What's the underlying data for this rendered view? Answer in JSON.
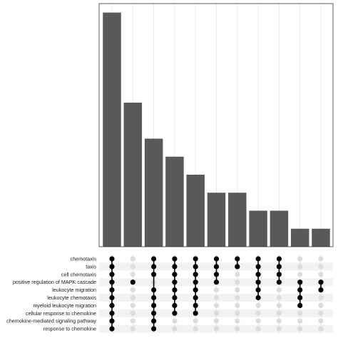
{
  "chart_data": {
    "type": "bar",
    "subtype": "upset",
    "title": "",
    "xlabel": "",
    "ylabel": "",
    "y_tick_labels_shown": false,
    "grid": "vertical",
    "sets": [
      "chemotaxis",
      "taxis",
      "cell chemotaxis",
      "positive regulation of MAPK cascade",
      "leukocyte migration",
      "leukocyte chemotaxis",
      "myeloid leukocyte migration",
      "cellular response to chemokine",
      "chemokine-mediated signaling pathway",
      "response to chemokine"
    ],
    "intersections": [
      {
        "size": 13,
        "members": [
          0,
          1,
          2,
          3,
          4,
          5,
          6,
          7,
          8,
          9
        ]
      },
      {
        "size": 8,
        "members": [
          3
        ]
      },
      {
        "size": 6,
        "members": [
          0,
          1,
          2,
          4,
          5,
          6,
          7,
          8,
          9
        ]
      },
      {
        "size": 5,
        "members": [
          0,
          1,
          2,
          3,
          4,
          5,
          6,
          7
        ]
      },
      {
        "size": 4,
        "members": [
          0,
          1,
          2,
          3,
          4,
          5,
          6,
          7
        ]
      },
      {
        "size": 3,
        "members": [
          0,
          1,
          2,
          3
        ]
      },
      {
        "size": 3,
        "members": [
          0,
          1
        ]
      },
      {
        "size": 2,
        "members": [
          0,
          1,
          2,
          3,
          4,
          5
        ]
      },
      {
        "size": 2,
        "members": [
          0,
          1,
          2,
          3
        ]
      },
      {
        "size": 1,
        "members": [
          3,
          4,
          5,
          6
        ]
      },
      {
        "size": 1,
        "members": [
          3,
          4
        ]
      }
    ],
    "ylim": [
      0,
      13.5
    ],
    "colors": {
      "bar": "#595959",
      "dot_active": "#000000",
      "dot_inactive": "#dcdcdc",
      "stripe": "#f2f2f2",
      "grid": "#e3e3e3",
      "panel_border": "#333333"
    }
  }
}
